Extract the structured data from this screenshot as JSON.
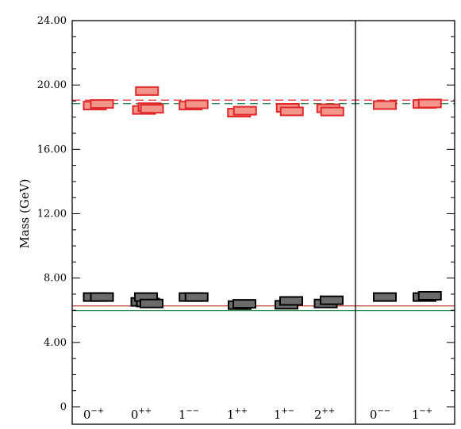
{
  "chart_data": {
    "type": "scatter",
    "ylabel": "Mass (GeV)",
    "ylim": [
      0,
      24
    ],
    "yticks": [
      {
        "value": 0,
        "label": "0"
      },
      {
        "value": 4,
        "label": "4.00"
      },
      {
        "value": 8,
        "label": "8.00"
      },
      {
        "value": 12,
        "label": "12.00"
      },
      {
        "value": 16,
        "label": "16.00"
      },
      {
        "value": 20,
        "label": "20.00"
      },
      {
        "value": 24,
        "label": "24.00"
      }
    ],
    "categories": [
      {
        "base": "0",
        "sup": "−+",
        "panel": 0
      },
      {
        "base": "0",
        "sup": "++",
        "panel": 0
      },
      {
        "base": "1",
        "sup": "−−",
        "panel": 0
      },
      {
        "base": "1",
        "sup": "++",
        "panel": 0
      },
      {
        "base": "1",
        "sup": "+−",
        "panel": 0
      },
      {
        "base": "2",
        "sup": "++",
        "panel": 0
      },
      {
        "base": "0",
        "sup": "−−",
        "panel": 1
      },
      {
        "base": "1",
        "sup": "−+",
        "panel": 1
      }
    ],
    "reference_lines": [
      {
        "value": 6.27,
        "color": "#cd3c3c",
        "style": "solid"
      },
      {
        "value": 5.98,
        "color": "#2e8b57",
        "style": "solid"
      },
      {
        "value": 19.06,
        "color": "#d62828",
        "style": "dashed"
      },
      {
        "value": 18.84,
        "color": "#2e8b57",
        "style": "dashed"
      }
    ],
    "series": [
      {
        "group": "low",
        "fill": "#6b6b6b",
        "stroke": "#000000",
        "boxes": [
          {
            "cat": 0,
            "offset": -0.18,
            "mass": 6.82,
            "err": 0.17
          },
          {
            "cat": 0,
            "offset": 0.18,
            "mass": 6.82,
            "err": 0.17
          },
          {
            "cat": 1,
            "offset": -0.18,
            "mass": 6.52,
            "err": 0.17
          },
          {
            "cat": 1,
            "offset": 0.1,
            "mass": 6.48,
            "err": 0.17
          },
          {
            "cat": 1,
            "offset": 0.0,
            "mass": 6.82,
            "err": 0.17
          },
          {
            "cat": 1,
            "offset": 0.28,
            "mass": 6.42,
            "err": 0.17
          },
          {
            "cat": 2,
            "offset": -0.15,
            "mass": 6.82,
            "err": 0.17
          },
          {
            "cat": 2,
            "offset": 0.15,
            "mass": 6.82,
            "err": 0.17
          },
          {
            "cat": 3,
            "offset": -0.12,
            "mass": 6.32,
            "err": 0.17
          },
          {
            "cat": 3,
            "offset": 0.12,
            "mass": 6.4,
            "err": 0.17
          },
          {
            "cat": 4,
            "offset": -0.12,
            "mass": 6.34,
            "err": 0.17
          },
          {
            "cat": 4,
            "offset": 0.12,
            "mass": 6.58,
            "err": 0.17
          },
          {
            "cat": 5,
            "offset": -0.18,
            "mass": 6.42,
            "err": 0.17
          },
          {
            "cat": 5,
            "offset": 0.12,
            "mass": 6.62,
            "err": 0.17
          },
          {
            "cat": 6,
            "offset": 0.0,
            "mass": 6.82,
            "err": 0.17
          },
          {
            "cat": 7,
            "offset": -0.12,
            "mass": 6.82,
            "err": 0.17
          },
          {
            "cat": 7,
            "offset": 0.15,
            "mass": 6.9,
            "err": 0.17
          }
        ]
      },
      {
        "group": "high",
        "fill": "#f2968c",
        "stroke": "#e0282a",
        "boxes": [
          {
            "cat": 0,
            "offset": -0.18,
            "mass": 18.72,
            "err": 0.17
          },
          {
            "cat": 0,
            "offset": 0.18,
            "mass": 18.82,
            "err": 0.17
          },
          {
            "cat": 1,
            "offset": -0.1,
            "mass": 18.45,
            "err": 0.17
          },
          {
            "cat": 1,
            "offset": 0.05,
            "mass": 19.62,
            "err": 0.17
          },
          {
            "cat": 1,
            "offset": 0.18,
            "mass": 18.62,
            "err": 0.17
          },
          {
            "cat": 1,
            "offset": 0.3,
            "mass": 18.52,
            "err": 0.17
          },
          {
            "cat": 2,
            "offset": -0.15,
            "mass": 18.72,
            "err": 0.17
          },
          {
            "cat": 2,
            "offset": 0.15,
            "mass": 18.8,
            "err": 0.17
          },
          {
            "cat": 3,
            "offset": -0.15,
            "mass": 18.28,
            "err": 0.17
          },
          {
            "cat": 3,
            "offset": 0.15,
            "mass": 18.4,
            "err": 0.17
          },
          {
            "cat": 4,
            "offset": -0.05,
            "mass": 18.58,
            "err": 0.17
          },
          {
            "cat": 4,
            "offset": 0.15,
            "mass": 18.36,
            "err": 0.17
          },
          {
            "cat": 5,
            "offset": -0.05,
            "mass": 18.55,
            "err": 0.17
          },
          {
            "cat": 5,
            "offset": 0.15,
            "mass": 18.35,
            "err": 0.17
          },
          {
            "cat": 6,
            "offset": 0.0,
            "mass": 18.75,
            "err": 0.17
          },
          {
            "cat": 7,
            "offset": -0.12,
            "mass": 18.82,
            "err": 0.17
          },
          {
            "cat": 7,
            "offset": 0.15,
            "mass": 18.85,
            "err": 0.17
          }
        ]
      }
    ]
  }
}
